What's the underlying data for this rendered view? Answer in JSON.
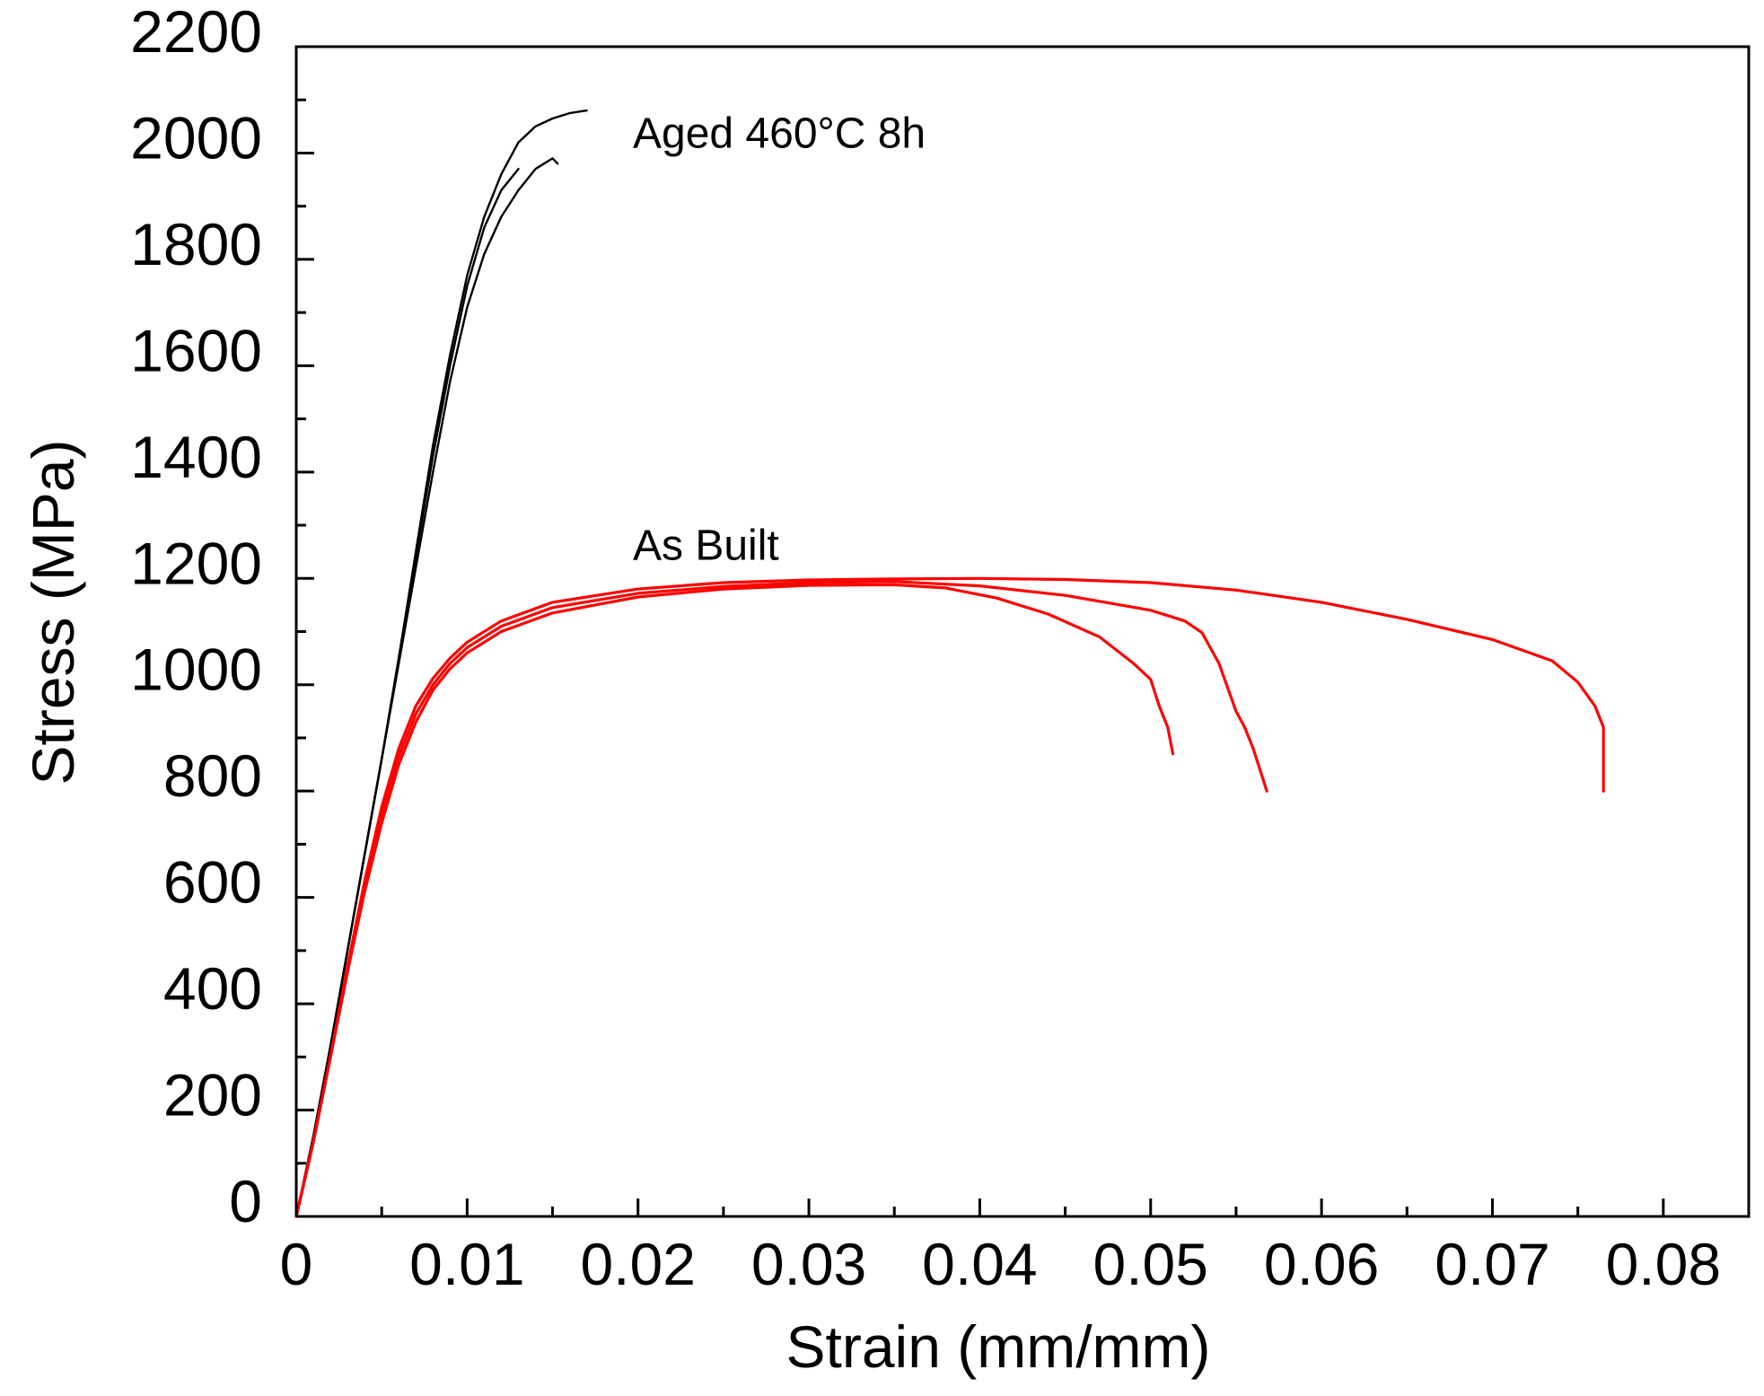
{
  "chart_data": {
    "type": "line",
    "title": "",
    "xlabel": "Strain (mm/mm)",
    "ylabel": "Stress (MPa)",
    "xlim": [
      0,
      0.085
    ],
    "ylim": [
      0,
      2200
    ],
    "x_ticks": [
      0,
      0.01,
      0.02,
      0.03,
      0.04,
      0.05,
      0.06,
      0.07,
      0.08
    ],
    "x_tick_labels": [
      "0",
      "0.01",
      "0.02",
      "0.03",
      "0.04",
      "0.05",
      "0.06",
      "0.07",
      "0.08"
    ],
    "y_ticks": [
      0,
      200,
      400,
      600,
      800,
      1000,
      1200,
      1400,
      1600,
      1800,
      2000,
      2200
    ],
    "y_tick_labels": [
      "0",
      "200",
      "400",
      "600",
      "800",
      "1000",
      "1200",
      "1400",
      "1600",
      "1800",
      "2000",
      "2200"
    ],
    "grid": false,
    "legend": "none",
    "annotations": [
      {
        "text": "Aged 460°C 8h",
        "x": 0.0197,
        "y": 2010
      },
      {
        "text": "As Built",
        "x": 0.0197,
        "y": 1235
      }
    ],
    "series": [
      {
        "group": "Aged 460°C 8h",
        "color": "#000000",
        "points": [
          [
            0,
            0
          ],
          [
            0.001,
            150
          ],
          [
            0.002,
            320
          ],
          [
            0.003,
            500
          ],
          [
            0.004,
            680
          ],
          [
            0.005,
            860
          ],
          [
            0.006,
            1050
          ],
          [
            0.007,
            1250
          ],
          [
            0.008,
            1450
          ],
          [
            0.009,
            1620
          ],
          [
            0.01,
            1770
          ],
          [
            0.011,
            1880
          ],
          [
            0.012,
            1960
          ],
          [
            0.013,
            2020
          ],
          [
            0.014,
            2050
          ],
          [
            0.015,
            2065
          ],
          [
            0.016,
            2075
          ],
          [
            0.017,
            2080
          ]
        ]
      },
      {
        "group": "Aged 460°C 8h",
        "color": "#000000",
        "points": [
          [
            0,
            0
          ],
          [
            0.001,
            150
          ],
          [
            0.002,
            320
          ],
          [
            0.003,
            500
          ],
          [
            0.004,
            680
          ],
          [
            0.005,
            860
          ],
          [
            0.006,
            1050
          ],
          [
            0.007,
            1240
          ],
          [
            0.008,
            1430
          ],
          [
            0.009,
            1600
          ],
          [
            0.01,
            1750
          ],
          [
            0.011,
            1860
          ],
          [
            0.012,
            1930
          ],
          [
            0.013,
            1970
          ]
        ]
      },
      {
        "group": "Aged 460°C 8h",
        "color": "#000000",
        "points": [
          [
            0,
            0
          ],
          [
            0.001,
            150
          ],
          [
            0.002,
            320
          ],
          [
            0.003,
            500
          ],
          [
            0.004,
            680
          ],
          [
            0.005,
            860
          ],
          [
            0.006,
            1040
          ],
          [
            0.007,
            1220
          ],
          [
            0.008,
            1400
          ],
          [
            0.009,
            1570
          ],
          [
            0.01,
            1710
          ],
          [
            0.011,
            1810
          ],
          [
            0.012,
            1880
          ],
          [
            0.013,
            1930
          ],
          [
            0.014,
            1970
          ],
          [
            0.015,
            1990
          ],
          [
            0.0153,
            1980
          ]
        ]
      },
      {
        "group": "As Built",
        "color": "#ff0000",
        "points": [
          [
            0,
            0
          ],
          [
            0.001,
            140
          ],
          [
            0.002,
            300
          ],
          [
            0.003,
            460
          ],
          [
            0.004,
            610
          ],
          [
            0.005,
            740
          ],
          [
            0.006,
            850
          ],
          [
            0.007,
            930
          ],
          [
            0.008,
            990
          ],
          [
            0.009,
            1030
          ],
          [
            0.01,
            1060
          ],
          [
            0.012,
            1100
          ],
          [
            0.015,
            1135
          ],
          [
            0.02,
            1165
          ],
          [
            0.025,
            1180
          ],
          [
            0.03,
            1187
          ],
          [
            0.035,
            1188
          ],
          [
            0.038,
            1182
          ],
          [
            0.041,
            1163
          ],
          [
            0.044,
            1133
          ],
          [
            0.047,
            1090
          ],
          [
            0.049,
            1040
          ],
          [
            0.05,
            1010
          ],
          [
            0.0505,
            960
          ],
          [
            0.051,
            920
          ],
          [
            0.0513,
            870
          ]
        ]
      },
      {
        "group": "As Built",
        "color": "#ff0000",
        "points": [
          [
            0,
            0
          ],
          [
            0.001,
            140
          ],
          [
            0.002,
            300
          ],
          [
            0.003,
            460
          ],
          [
            0.004,
            620
          ],
          [
            0.005,
            755
          ],
          [
            0.006,
            865
          ],
          [
            0.007,
            945
          ],
          [
            0.008,
            1000
          ],
          [
            0.009,
            1040
          ],
          [
            0.01,
            1070
          ],
          [
            0.012,
            1110
          ],
          [
            0.015,
            1145
          ],
          [
            0.02,
            1172
          ],
          [
            0.025,
            1185
          ],
          [
            0.03,
            1192
          ],
          [
            0.035,
            1194
          ],
          [
            0.04,
            1186
          ],
          [
            0.045,
            1168
          ],
          [
            0.05,
            1140
          ],
          [
            0.052,
            1120
          ],
          [
            0.053,
            1098
          ],
          [
            0.054,
            1040
          ],
          [
            0.055,
            950
          ],
          [
            0.0555,
            920
          ],
          [
            0.056,
            880
          ],
          [
            0.0568,
            800
          ]
        ]
      },
      {
        "group": "As Built",
        "color": "#ff0000",
        "points": [
          [
            0,
            0
          ],
          [
            0.001,
            140
          ],
          [
            0.002,
            300
          ],
          [
            0.003,
            470
          ],
          [
            0.004,
            630
          ],
          [
            0.005,
            770
          ],
          [
            0.006,
            880
          ],
          [
            0.007,
            960
          ],
          [
            0.008,
            1012
          ],
          [
            0.009,
            1050
          ],
          [
            0.01,
            1080
          ],
          [
            0.012,
            1120
          ],
          [
            0.015,
            1155
          ],
          [
            0.02,
            1180
          ],
          [
            0.025,
            1192
          ],
          [
            0.03,
            1197
          ],
          [
            0.035,
            1199
          ],
          [
            0.04,
            1200
          ],
          [
            0.045,
            1198
          ],
          [
            0.05,
            1192
          ],
          [
            0.055,
            1178
          ],
          [
            0.06,
            1155
          ],
          [
            0.065,
            1123
          ],
          [
            0.07,
            1085
          ],
          [
            0.0735,
            1045
          ],
          [
            0.075,
            1005
          ],
          [
            0.076,
            960
          ],
          [
            0.0765,
            920
          ],
          [
            0.0765,
            800
          ]
        ]
      }
    ]
  }
}
